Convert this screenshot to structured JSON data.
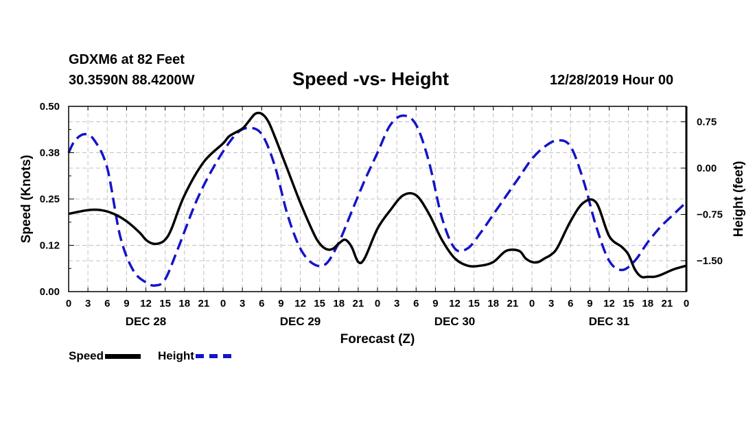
{
  "header": {
    "station": "GDXM6 at 82 Feet",
    "coords": "30.3590N 88.4200W",
    "title": "Speed -vs- Height",
    "timestamp": "12/28/2019 Hour 00"
  },
  "legend": {
    "speed_label": "Speed",
    "height_label": "Height"
  },
  "colors": {
    "speed": "#000000",
    "height": "#1414c8",
    "grid": "#c0c0c0"
  },
  "chart_data": {
    "type": "line",
    "title": "Speed -vs- Height",
    "xlabel": "Forecast (Z)",
    "ylabel": "Speed (Knots)",
    "y2label": "Height (feet)",
    "xlim": [
      0,
      96
    ],
    "ylim": [
      0,
      0.5
    ],
    "y2lim": [
      -2.0,
      1.0
    ],
    "x_tick_labels": [
      "0",
      "3",
      "6",
      "9",
      "12",
      "15",
      "18",
      "21",
      "0",
      "3",
      "6",
      "9",
      "12",
      "15",
      "18",
      "21",
      "0",
      "3",
      "6",
      "9",
      "12",
      "15",
      "18",
      "21",
      "0",
      "3",
      "6",
      "9",
      "12",
      "15",
      "18",
      "21",
      "0"
    ],
    "day_labels": [
      {
        "label": "DEC 28",
        "x": 12
      },
      {
        "label": "DEC 29",
        "x": 36
      },
      {
        "label": "DEC 30",
        "x": 60
      },
      {
        "label": "DEC 31",
        "x": 84
      }
    ],
    "y_ticks": [
      {
        "value": 0.0,
        "label": "0.00"
      },
      {
        "value": 0.125,
        "label": "0.12"
      },
      {
        "value": 0.25,
        "label": "0.25"
      },
      {
        "value": 0.375,
        "label": "0.38"
      },
      {
        "value": 0.5,
        "label": "0.50"
      }
    ],
    "y2_ticks": [
      {
        "value": 0.75,
        "label": "0.75"
      },
      {
        "value": 0.0,
        "label": "0.00"
      },
      {
        "value": -0.75,
        "label": "−0.75"
      },
      {
        "value": -1.5,
        "label": "−1.50"
      }
    ],
    "series": [
      {
        "name": "Speed",
        "axis": "left",
        "style": "solid",
        "x": [
          0,
          3,
          5,
          7,
          9,
          11,
          12,
          13,
          14,
          15,
          16,
          18,
          21,
          24,
          25,
          27,
          28,
          29,
          30,
          31,
          32,
          34,
          36,
          38,
          39,
          40,
          41,
          42,
          43,
          44,
          45,
          46,
          48,
          50,
          52,
          54,
          56,
          58,
          60,
          62,
          64,
          66,
          68,
          70,
          71,
          72,
          73,
          74,
          75,
          76,
          78,
          80,
          82,
          84,
          86,
          87,
          88,
          89,
          90,
          91,
          92,
          94,
          96
        ],
        "y": [
          0.21,
          0.22,
          0.22,
          0.21,
          0.19,
          0.16,
          0.14,
          0.13,
          0.13,
          0.14,
          0.17,
          0.26,
          0.35,
          0.4,
          0.42,
          0.44,
          0.46,
          0.48,
          0.48,
          0.46,
          0.42,
          0.33,
          0.24,
          0.16,
          0.13,
          0.115,
          0.115,
          0.13,
          0.14,
          0.12,
          0.08,
          0.09,
          0.17,
          0.22,
          0.26,
          0.26,
          0.21,
          0.14,
          0.09,
          0.07,
          0.07,
          0.08,
          0.11,
          0.11,
          0.09,
          0.08,
          0.08,
          0.09,
          0.1,
          0.12,
          0.19,
          0.24,
          0.24,
          0.15,
          0.12,
          0.1,
          0.06,
          0.04,
          0.04,
          0.04,
          0.045,
          0.06,
          0.07
        ]
      },
      {
        "name": "Height",
        "axis": "right",
        "style": "dashed",
        "x": [
          0,
          1,
          2.5,
          4,
          6,
          8,
          10,
          12,
          13.5,
          15,
          17,
          20,
          23,
          26,
          28,
          30,
          32,
          34,
          36,
          38,
          40,
          42,
          44,
          46,
          48,
          50,
          52,
          54,
          56,
          58,
          60,
          62,
          64,
          66,
          68,
          70,
          72,
          74,
          76,
          78,
          80,
          82,
          84,
          86,
          88,
          90,
          92,
          94,
          96
        ],
        "y": [
          0.25,
          0.45,
          0.55,
          0.45,
          0.0,
          -1.1,
          -1.65,
          -1.85,
          -1.9,
          -1.8,
          -1.3,
          -0.5,
          0.1,
          0.55,
          0.65,
          0.55,
          0.05,
          -0.75,
          -1.3,
          -1.55,
          -1.55,
          -1.2,
          -0.7,
          -0.2,
          0.25,
          0.7,
          0.85,
          0.7,
          0.1,
          -0.8,
          -1.3,
          -1.3,
          -1.05,
          -0.75,
          -0.45,
          -0.15,
          0.15,
          0.35,
          0.45,
          0.35,
          -0.2,
          -0.95,
          -1.5,
          -1.65,
          -1.5,
          -1.2,
          -0.95,
          -0.75,
          -0.55
        ]
      }
    ]
  }
}
